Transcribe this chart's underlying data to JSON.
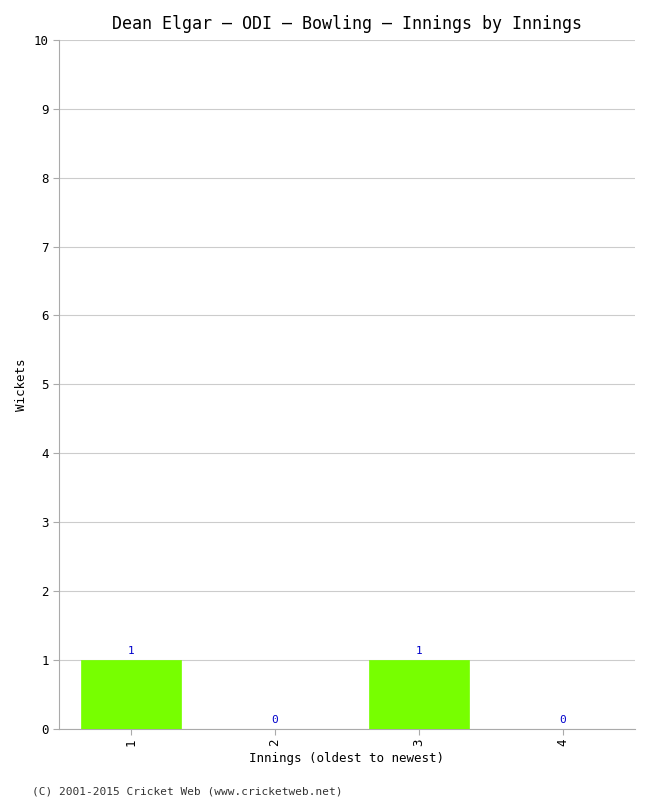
{
  "title": "Dean Elgar – ODI – Bowling – Innings by Innings",
  "xlabel": "Innings (oldest to newest)",
  "ylabel": "Wickets",
  "categories": [
    "1",
    "2",
    "3",
    "4"
  ],
  "values": [
    1,
    0,
    1,
    0
  ],
  "bar_color": "#77ff00",
  "bar_edge_color": "#77ff00",
  "label_color": "#0000cc",
  "ylim": [
    0,
    10
  ],
  "yticks": [
    0,
    1,
    2,
    3,
    4,
    5,
    6,
    7,
    8,
    9,
    10
  ],
  "background_color": "#ffffff",
  "plot_bg_color": "#f0f0f0",
  "grid_color": "#cccccc",
  "footer": "(C) 2001-2015 Cricket Web (www.cricketweb.net)",
  "title_fontsize": 12,
  "axis_label_fontsize": 9,
  "tick_fontsize": 9,
  "bar_label_fontsize": 8,
  "footer_fontsize": 8
}
